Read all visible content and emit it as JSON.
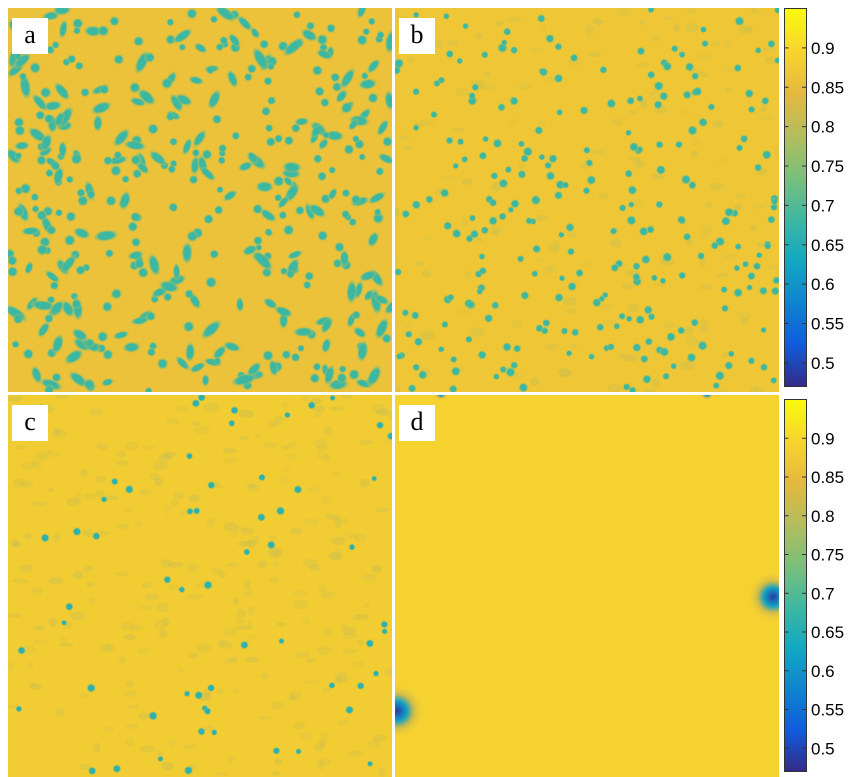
{
  "chart_data": [
    {
      "type": "heatmap",
      "panel": "a",
      "label": "a",
      "background_value": 0.86,
      "spot_value": 0.68,
      "spot_density": "high",
      "spot_count_estimate": 420,
      "spot_pattern": "dense labyrinthine spots and worm-like stripes"
    },
    {
      "type": "heatmap",
      "panel": "b",
      "label": "b",
      "background_value": 0.87,
      "spot_value": 0.68,
      "spot_density": "medium-high",
      "spot_count_estimate": 260,
      "spot_pattern": "distinct spots with fainter stripe remnants"
    },
    {
      "type": "heatmap",
      "panel": "c",
      "label": "c",
      "background_value": 0.88,
      "spot_value": 0.66,
      "spot_density": "low",
      "spot_count_estimate": 60,
      "spot_pattern": "sparse isolated spots on faint mottled background"
    },
    {
      "type": "heatmap",
      "panel": "d",
      "label": "d",
      "background_value": 0.89,
      "spot_value": 0.5,
      "spot_density": "very low",
      "spot_count_estimate": 4,
      "spot_pattern": "few deep spots at panel edges, nearly uniform field"
    }
  ],
  "colorbar": {
    "colormap": "parula",
    "range": [
      0.47,
      0.95
    ],
    "ticks": [
      0.5,
      0.55,
      0.6,
      0.65,
      0.7,
      0.75,
      0.8,
      0.85,
      0.9
    ],
    "tick_labels": [
      "0.5",
      "0.55",
      "0.6",
      "0.65",
      "0.7",
      "0.75",
      "0.8",
      "0.85",
      "0.9"
    ],
    "colors": [
      "#352a87",
      "#0f5cdd",
      "#0f84cf",
      "#12a8c2",
      "#3fb8a0",
      "#7cbf7b",
      "#b5bd5c",
      "#e5b93e",
      "#f8d52e",
      "#f9fb0e"
    ]
  }
}
